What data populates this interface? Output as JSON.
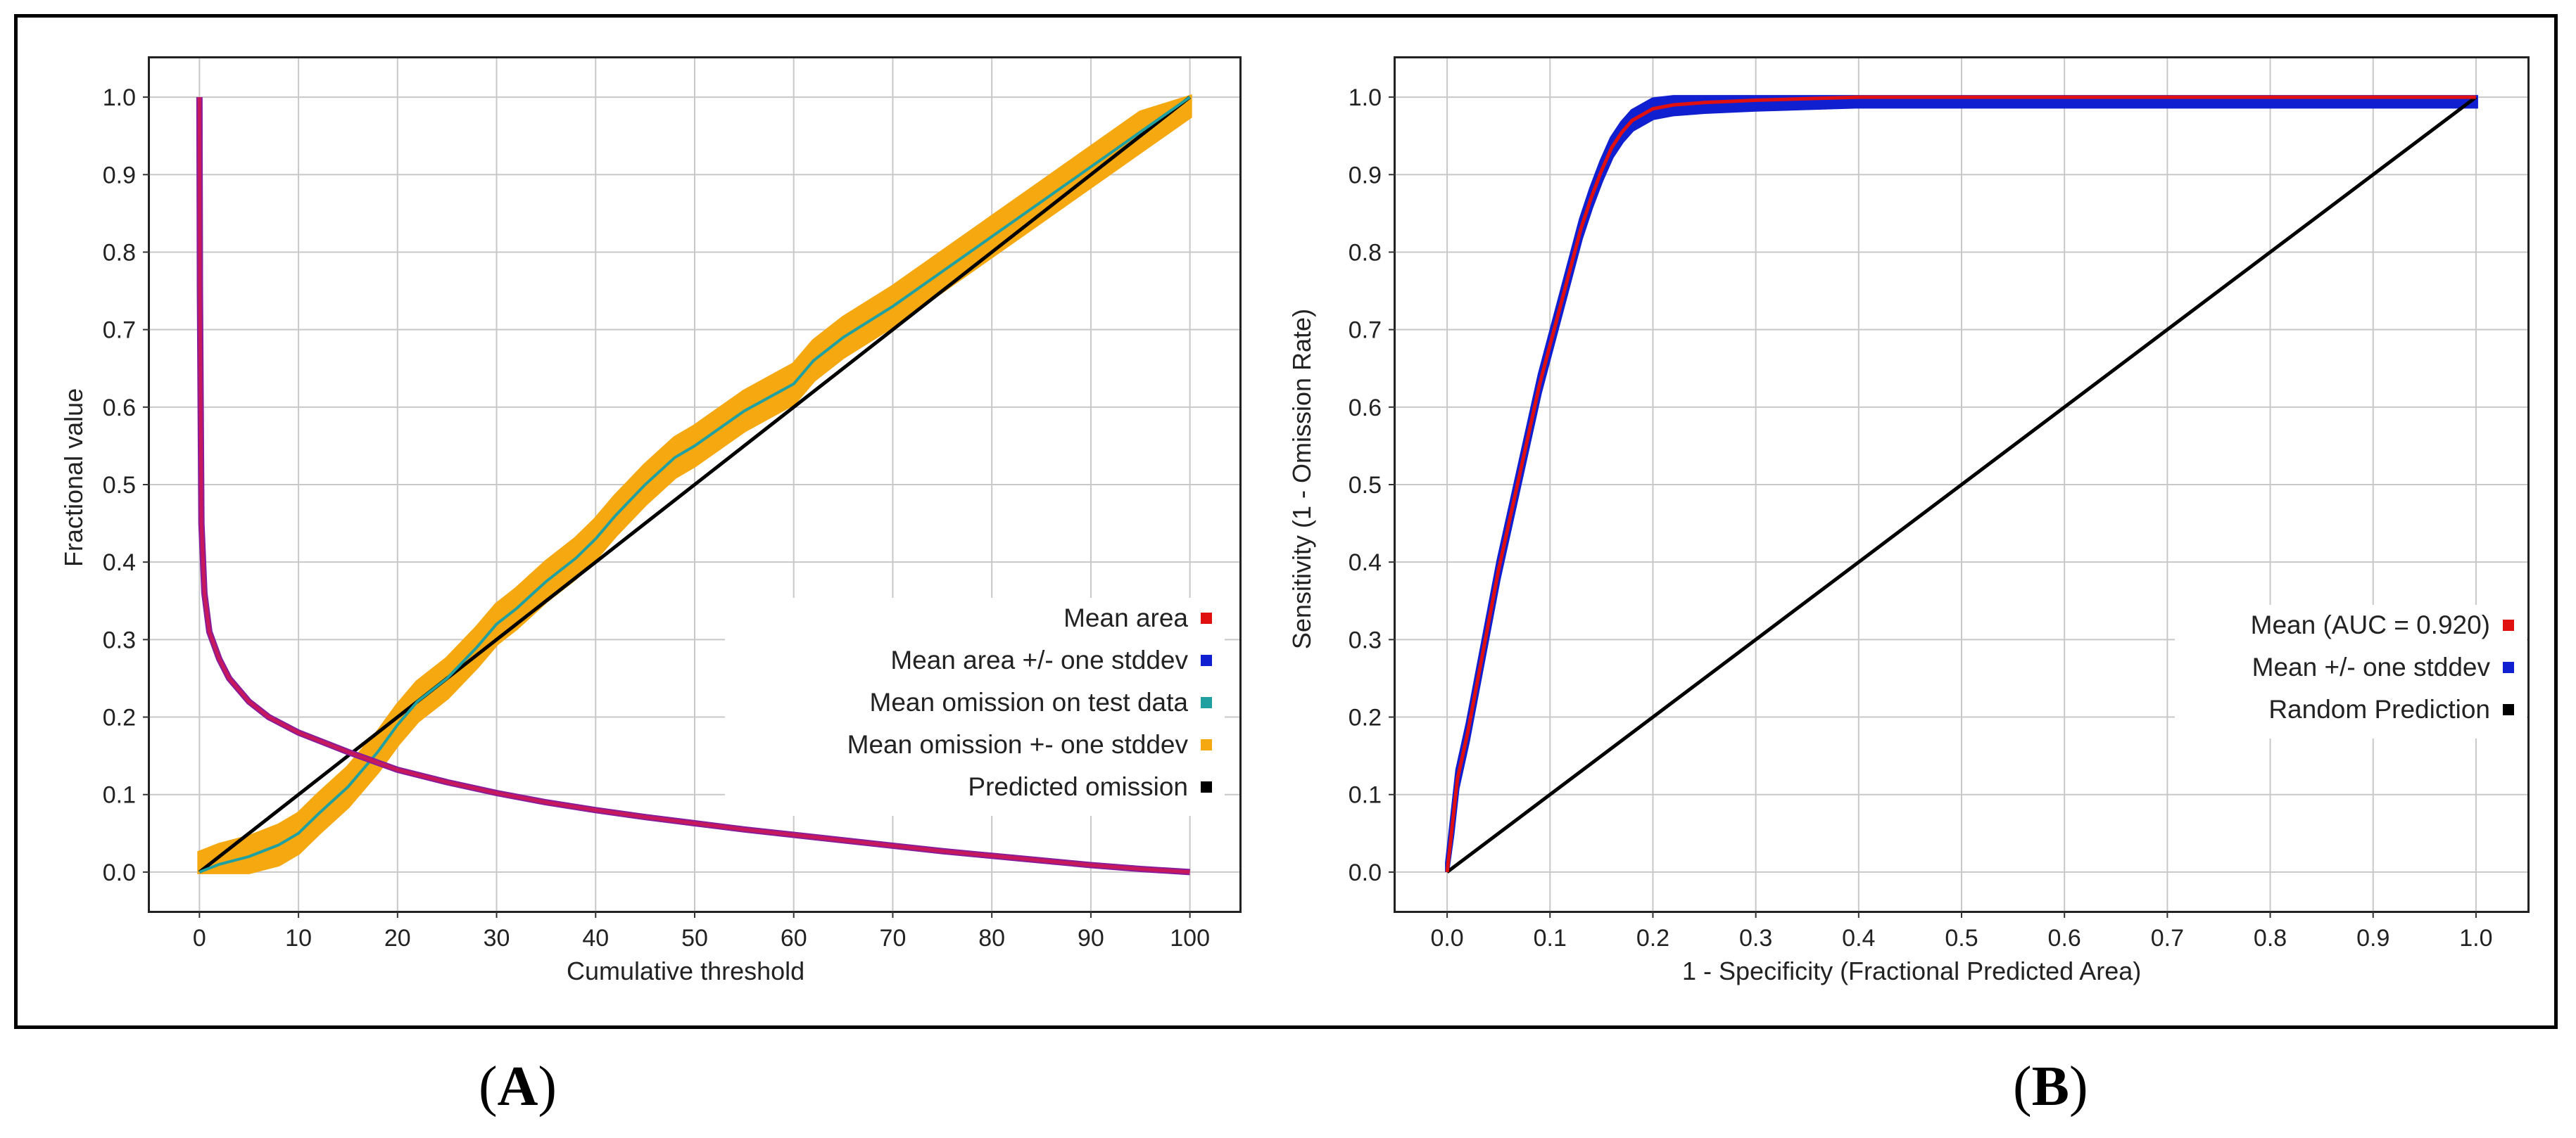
{
  "captions": {
    "a": "A",
    "b": "B"
  },
  "chart_data": [
    {
      "type": "line",
      "xlabel": "Cumulative threshold",
      "ylabel": "Fractional value",
      "xlim": [
        -5,
        105
      ],
      "ylim": [
        -0.05,
        1.05
      ],
      "x_ticks": [
        "0",
        "10",
        "20",
        "30",
        "40",
        "50",
        "60",
        "70",
        "80",
        "90",
        "100"
      ],
      "y_ticks": [
        "0.0",
        "0.1",
        "0.2",
        "0.3",
        "0.4",
        "0.5",
        "0.6",
        "0.7",
        "0.8",
        "0.9",
        "1.0"
      ],
      "grid": true,
      "legend_position": "lower-right",
      "series": [
        {
          "name": "Mean area",
          "color": "#e01010",
          "x": [
            0,
            0.05,
            0.2,
            0.5,
            1,
            2,
            3,
            5,
            7,
            10,
            15,
            20,
            25,
            30,
            35,
            40,
            45,
            50,
            55,
            60,
            65,
            70,
            75,
            80,
            85,
            90,
            95,
            100
          ],
          "y": [
            1.0,
            0.75,
            0.45,
            0.36,
            0.31,
            0.275,
            0.25,
            0.22,
            0.2,
            0.18,
            0.155,
            0.132,
            0.116,
            0.102,
            0.09,
            0.08,
            0.071,
            0.063,
            0.055,
            0.048,
            0.041,
            0.034,
            0.027,
            0.021,
            0.015,
            0.009,
            0.004,
            0.0
          ]
        },
        {
          "name": "Mean area +/- one stddev",
          "color": "#1020d0"
        },
        {
          "name": "Mean omission on test data",
          "color": "#20a0a0",
          "x": [
            0,
            2,
            5,
            8,
            10,
            12,
            15,
            18,
            20,
            22,
            25,
            28,
            30,
            32,
            35,
            38,
            40,
            42,
            45,
            48,
            50,
            55,
            60,
            62,
            65,
            70,
            75,
            80,
            85,
            90,
            95,
            100
          ],
          "y": [
            0.0,
            0.01,
            0.02,
            0.035,
            0.05,
            0.075,
            0.11,
            0.155,
            0.19,
            0.22,
            0.25,
            0.29,
            0.32,
            0.34,
            0.375,
            0.405,
            0.43,
            0.46,
            0.5,
            0.535,
            0.55,
            0.595,
            0.63,
            0.66,
            0.69,
            0.73,
            0.775,
            0.82,
            0.865,
            0.91,
            0.955,
            1.0
          ]
        },
        {
          "name": "Mean omission +- one stddev",
          "color": "#f5a810",
          "band_halfwidth": 0.025
        },
        {
          "name": "Predicted omission",
          "color": "#000000",
          "x": [
            0,
            100
          ],
          "y": [
            0,
            1
          ]
        }
      ]
    },
    {
      "type": "line",
      "xlabel": "1 - Specificity (Fractional Predicted Area)",
      "ylabel": "Sensitivity (1 - Omission Rate)",
      "xlim": [
        -0.05,
        1.05
      ],
      "ylim": [
        -0.05,
        1.05
      ],
      "x_ticks": [
        "0.0",
        "0.1",
        "0.2",
        "0.3",
        "0.4",
        "0.5",
        "0.6",
        "0.7",
        "0.8",
        "0.9",
        "1.0"
      ],
      "y_ticks": [
        "0.0",
        "0.1",
        "0.2",
        "0.3",
        "0.4",
        "0.5",
        "0.6",
        "0.7",
        "0.8",
        "0.9",
        "1.0"
      ],
      "grid": true,
      "legend_position": "lower-right",
      "series": [
        {
          "name": "Mean (AUC = 0.920)",
          "color": "#e01010",
          "x": [
            0,
            0.005,
            0.01,
            0.02,
            0.03,
            0.04,
            0.05,
            0.06,
            0.07,
            0.08,
            0.09,
            0.1,
            0.11,
            0.12,
            0.13,
            0.14,
            0.15,
            0.16,
            0.17,
            0.18,
            0.2,
            0.22,
            0.25,
            0.3,
            0.35,
            0.4,
            0.5,
            0.6,
            0.7,
            0.8,
            0.9,
            1.0
          ],
          "y": [
            0,
            0.06,
            0.12,
            0.18,
            0.25,
            0.32,
            0.39,
            0.45,
            0.51,
            0.57,
            0.63,
            0.68,
            0.73,
            0.78,
            0.83,
            0.87,
            0.905,
            0.935,
            0.955,
            0.97,
            0.985,
            0.99,
            0.993,
            0.996,
            0.998,
            1.0,
            1.0,
            1.0,
            1.0,
            1.0,
            1.0,
            1.0
          ]
        },
        {
          "name": "Mean +/- one stddev",
          "color": "#1020d0",
          "band_halfwidth": 0.012
        },
        {
          "name": "Random Prediction",
          "color": "#000000",
          "x": [
            0,
            1
          ],
          "y": [
            0,
            1
          ]
        }
      ]
    }
  ]
}
